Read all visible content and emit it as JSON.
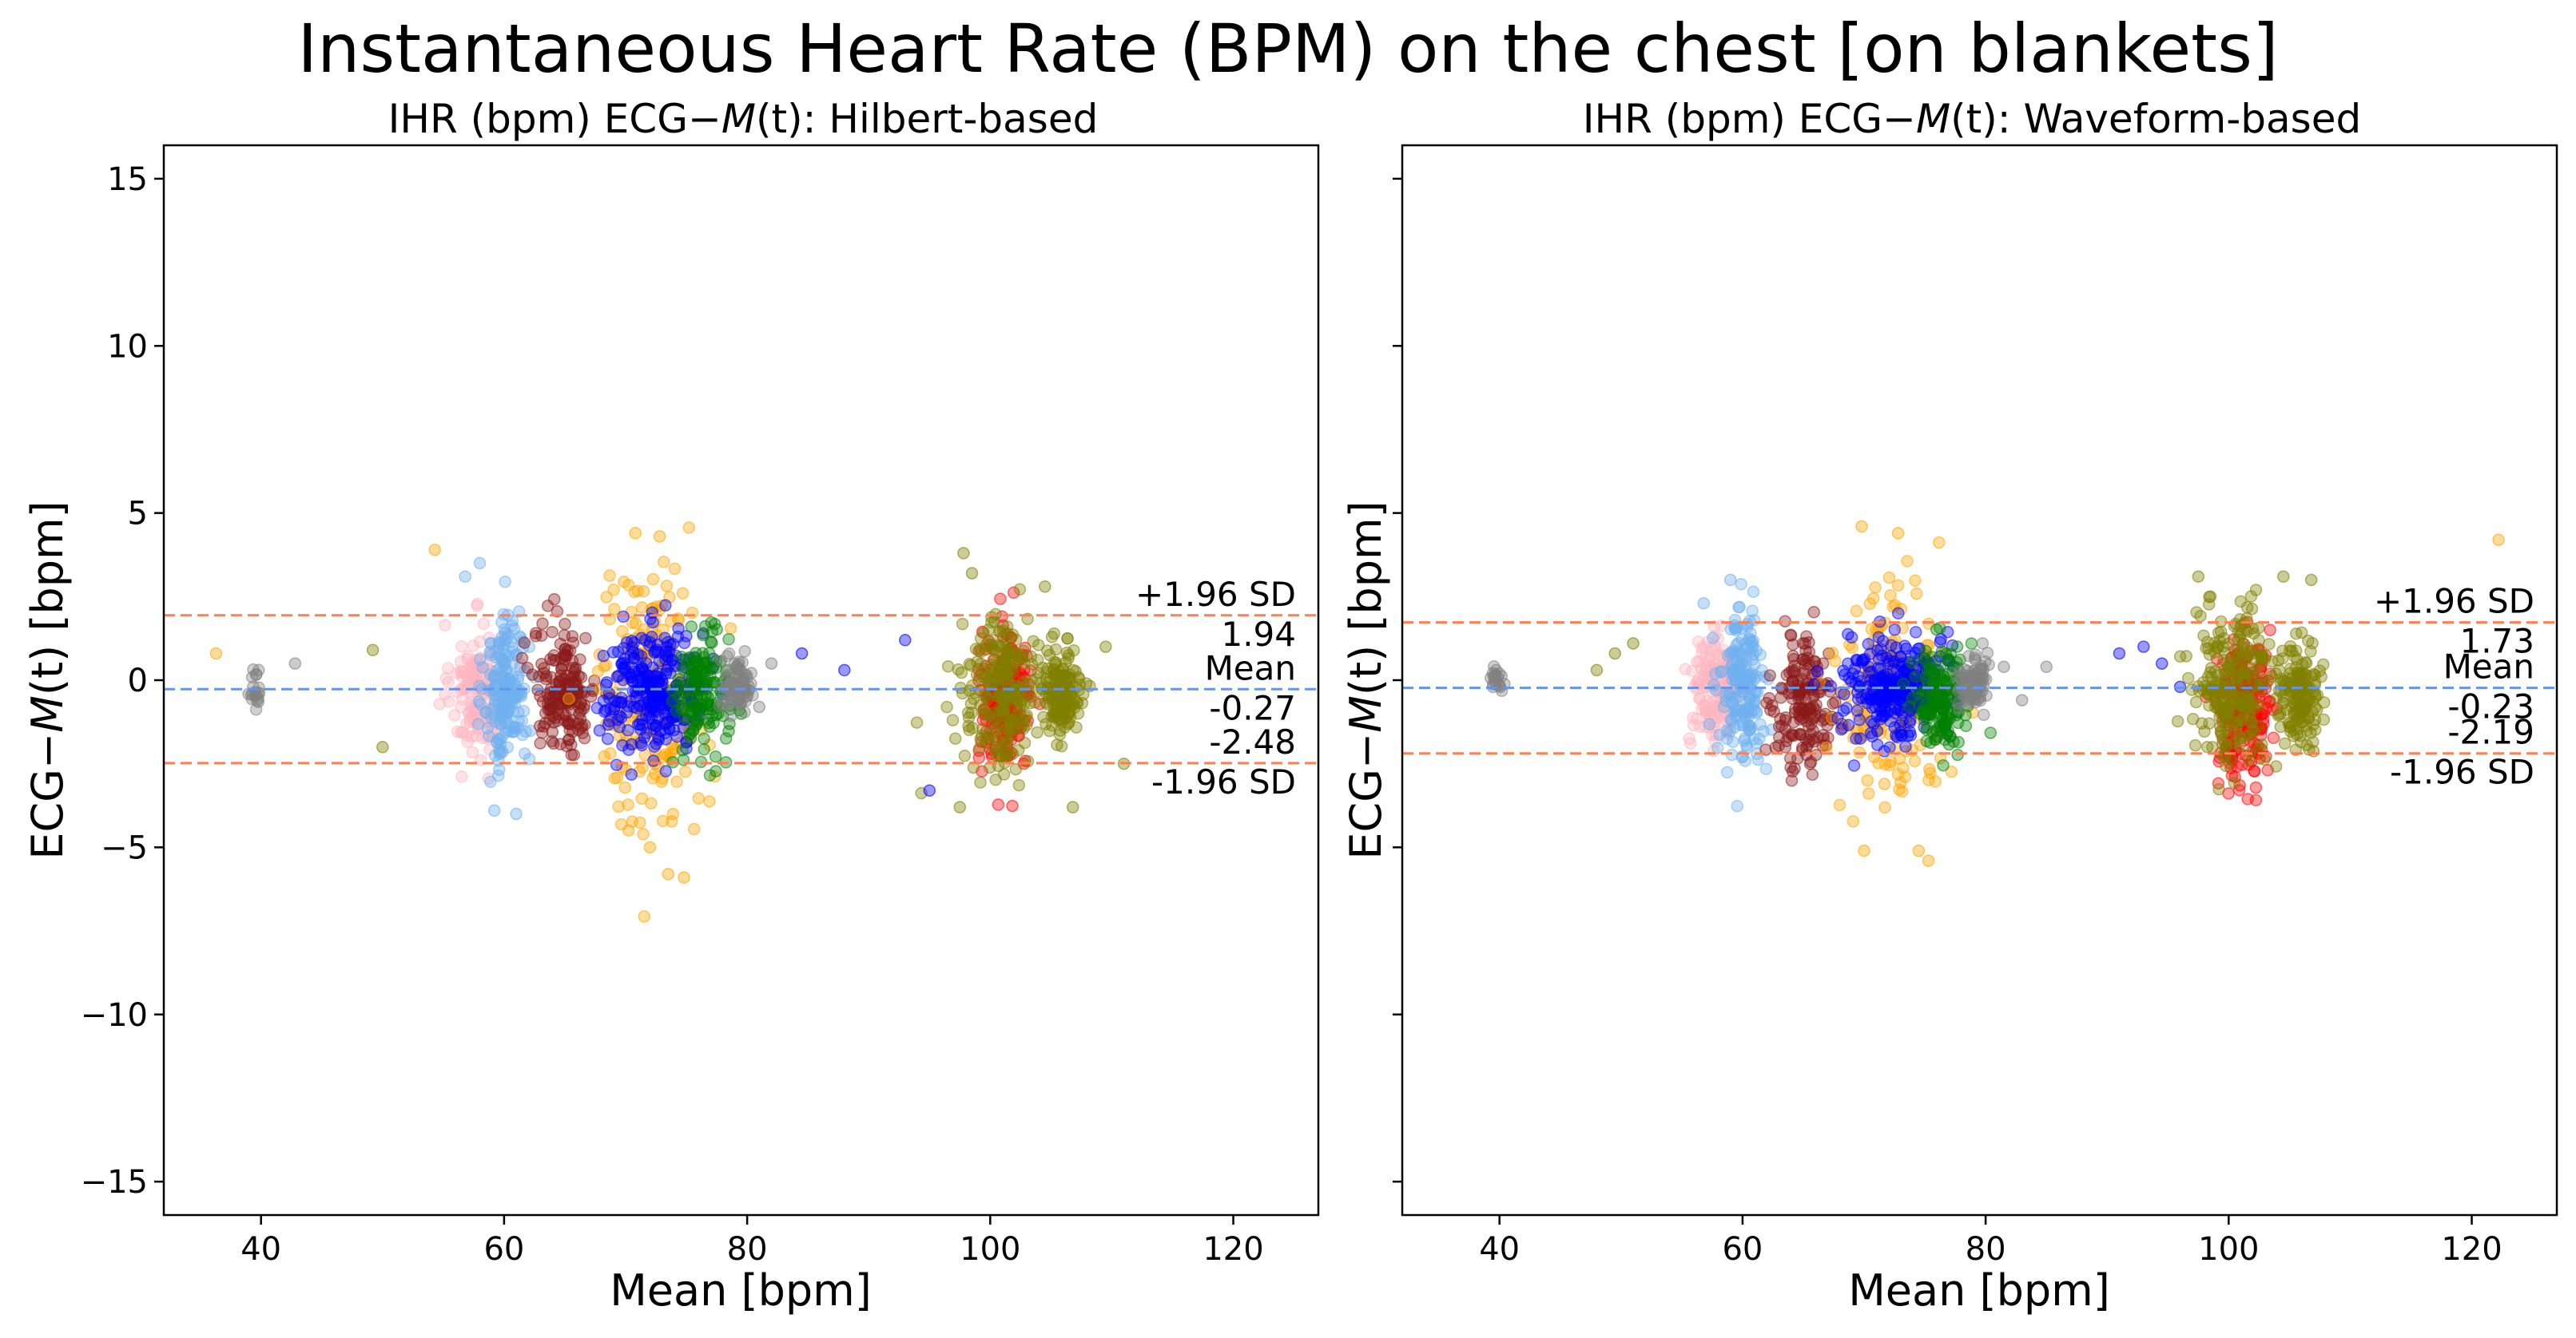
{
  "figure": {
    "title": "Instantaneous Heart Rate (BPM) on the chest [on blankets]"
  },
  "chart_data": [
    {
      "type": "scatter",
      "title_prefix": "IHR (bpm) ECG−",
      "title_italic": "M",
      "title_paren": "(t)",
      "title_suffix": ": Hilbert-based",
      "xlabel": "Mean [bpm]",
      "ylabel_prefix": "ECG−",
      "ylabel_italic": "M",
      "ylabel_suffix": "(t) [bpm]",
      "xlim": [
        32,
        127
      ],
      "ylim": [
        -16,
        16
      ],
      "xticks": [
        40,
        60,
        80,
        100,
        120
      ],
      "yticks": [
        15,
        10,
        5,
        0,
        -5,
        -10,
        -15
      ],
      "ytick_labels": [
        "15",
        "10",
        "5",
        "0",
        "−5",
        "−10",
        "−15"
      ],
      "grid": false,
      "mean": -0.27,
      "upper_loa": 1.94,
      "lower_loa": -2.48,
      "annotations": {
        "upper_label": "+1.96 SD",
        "upper_value": "1.94",
        "mean_label": "Mean",
        "mean_value": "-0.27",
        "lower_value": "-2.48",
        "lower_label": "-1.96 SD"
      },
      "series": [
        {
          "color": "#808080",
          "x_center": 39.5,
          "x_spread": 0.3,
          "y_center": -0.2,
          "y_spread": 0.35,
          "n": 20
        },
        {
          "color": "#ffb6c1",
          "x_center": 57.8,
          "x_spread": 1.1,
          "y_center": -0.3,
          "y_spread": 1.0,
          "n": 150
        },
        {
          "color": "#6fb0f0",
          "x_center": 60.2,
          "x_spread": 0.9,
          "y_center": -0.3,
          "y_spread": 1.2,
          "n": 180
        },
        {
          "color": "#8b1a1a",
          "x_center": 65.0,
          "x_spread": 1.3,
          "y_center": -0.3,
          "y_spread": 0.9,
          "n": 170
        },
        {
          "color": "#ffa500",
          "x_center": 72.0,
          "x_spread": 2.3,
          "y_center": -0.5,
          "y_spread": 2.0,
          "n": 180
        },
        {
          "color": "#0000ff",
          "x_center": 72.5,
          "x_spread": 2.1,
          "y_center": -0.3,
          "y_spread": 0.9,
          "n": 280
        },
        {
          "color": "#008000",
          "x_center": 76.3,
          "x_spread": 1.1,
          "y_center": -0.4,
          "y_spread": 0.9,
          "n": 150
        },
        {
          "color": "#808080",
          "x_center": 79.2,
          "x_spread": 0.6,
          "y_center": -0.1,
          "y_spread": 0.4,
          "n": 80
        },
        {
          "color": "#ff0000",
          "x_center": 101.2,
          "x_spread": 1.1,
          "y_center": -0.7,
          "y_spread": 1.0,
          "n": 200
        },
        {
          "color": "#808000",
          "x_center": 101.0,
          "x_spread": 1.7,
          "y_center": -0.3,
          "y_spread": 1.1,
          "n": 230
        },
        {
          "color": "#808000",
          "x_center": 105.8,
          "x_spread": 0.9,
          "y_center": -0.4,
          "y_spread": 0.7,
          "n": 160
        }
      ],
      "outliers": [
        {
          "x": 36.3,
          "y": 0.8,
          "color": "#ffa500"
        },
        {
          "x": 42.8,
          "y": 0.5,
          "color": "#808080"
        },
        {
          "x": 49.2,
          "y": 0.9,
          "color": "#808000"
        },
        {
          "x": 50.0,
          "y": -2.0,
          "color": "#808000"
        },
        {
          "x": 54.3,
          "y": 3.9,
          "color": "#ffa500"
        },
        {
          "x": 56.8,
          "y": 3.1,
          "color": "#6fb0f0"
        },
        {
          "x": 58.0,
          "y": 3.5,
          "color": "#6fb0f0"
        },
        {
          "x": 59.2,
          "y": -3.9,
          "color": "#6fb0f0"
        },
        {
          "x": 61.0,
          "y": -4.0,
          "color": "#6fb0f0"
        },
        {
          "x": 70.8,
          "y": 4.4,
          "color": "#ffa500"
        },
        {
          "x": 72.8,
          "y": 4.3,
          "color": "#ffa500"
        },
        {
          "x": 73.5,
          "y": -5.8,
          "color": "#ffa500"
        },
        {
          "x": 74.8,
          "y": -5.9,
          "color": "#ffa500"
        },
        {
          "x": 72.0,
          "y": -5.0,
          "color": "#ffa500"
        },
        {
          "x": 81.0,
          "y": -0.8,
          "color": "#808080"
        },
        {
          "x": 82.0,
          "y": 0.5,
          "color": "#808080"
        },
        {
          "x": 84.5,
          "y": 0.8,
          "color": "#0000ff"
        },
        {
          "x": 88.0,
          "y": 0.3,
          "color": "#0000ff"
        },
        {
          "x": 93.0,
          "y": 1.2,
          "color": "#0000ff"
        },
        {
          "x": 95.0,
          "y": -3.3,
          "color": "#0000ff"
        },
        {
          "x": 97.8,
          "y": 3.8,
          "color": "#808000"
        },
        {
          "x": 98.5,
          "y": 3.2,
          "color": "#808000"
        },
        {
          "x": 104.5,
          "y": 2.8,
          "color": "#808000"
        },
        {
          "x": 106.8,
          "y": -3.8,
          "color": "#808000"
        },
        {
          "x": 109.5,
          "y": 1.0,
          "color": "#808000"
        },
        {
          "x": 111.0,
          "y": -2.5,
          "color": "#808000"
        },
        {
          "x": 97.5,
          "y": -3.8,
          "color": "#808000"
        }
      ]
    },
    {
      "type": "scatter",
      "title_prefix": "IHR (bpm) ECG−",
      "title_italic": "M",
      "title_paren": "(t)",
      "title_suffix": ": Waveform-based",
      "xlabel": "Mean [bpm]",
      "ylabel_prefix": "ECG−",
      "ylabel_italic": "M",
      "ylabel_suffix": "(t) [bpm]",
      "xlim": [
        32,
        127
      ],
      "ylim": [
        -16,
        16
      ],
      "xticks": [
        40,
        60,
        80,
        100,
        120
      ],
      "yticks": [
        15,
        10,
        5,
        0,
        -5,
        -10,
        -15
      ],
      "grid": false,
      "mean": -0.23,
      "upper_loa": 1.73,
      "lower_loa": -2.19,
      "annotations": {
        "upper_label": "+1.96 SD",
        "upper_value": "1.73",
        "mean_label": "Mean",
        "mean_value": "-0.23",
        "lower_value": "-2.19",
        "lower_label": "-1.96 SD"
      },
      "series": [
        {
          "color": "#808080",
          "x_center": 39.7,
          "x_spread": 0.3,
          "y_center": 0.0,
          "y_spread": 0.2,
          "n": 20
        },
        {
          "color": "#ffb6c1",
          "x_center": 57.8,
          "x_spread": 1.1,
          "y_center": -0.3,
          "y_spread": 0.9,
          "n": 150
        },
        {
          "color": "#6fb0f0",
          "x_center": 60.0,
          "x_spread": 0.9,
          "y_center": -0.2,
          "y_spread": 1.1,
          "n": 180
        },
        {
          "color": "#8b1a1a",
          "x_center": 65.2,
          "x_spread": 1.3,
          "y_center": -0.8,
          "y_spread": 1.0,
          "n": 170
        },
        {
          "color": "#ffa500",
          "x_center": 72.0,
          "x_spread": 2.2,
          "y_center": -0.3,
          "y_spread": 1.6,
          "n": 160
        },
        {
          "color": "#0000ff",
          "x_center": 72.5,
          "x_spread": 2.0,
          "y_center": -0.2,
          "y_spread": 0.8,
          "n": 280
        },
        {
          "color": "#008000",
          "x_center": 76.3,
          "x_spread": 1.1,
          "y_center": -0.5,
          "y_spread": 0.8,
          "n": 150
        },
        {
          "color": "#808080",
          "x_center": 79.0,
          "x_spread": 0.6,
          "y_center": -0.1,
          "y_spread": 0.4,
          "n": 80
        },
        {
          "color": "#ff0000",
          "x_center": 101.2,
          "x_spread": 1.1,
          "y_center": -0.9,
          "y_spread": 1.1,
          "n": 200
        },
        {
          "color": "#808000",
          "x_center": 100.5,
          "x_spread": 1.6,
          "y_center": -0.2,
          "y_spread": 1.1,
          "n": 230
        },
        {
          "color": "#808000",
          "x_center": 105.8,
          "x_spread": 0.9,
          "y_center": -0.4,
          "y_spread": 0.7,
          "n": 160
        }
      ],
      "outliers": [
        {
          "x": 48.0,
          "y": 0.3,
          "color": "#808000"
        },
        {
          "x": 49.5,
          "y": 0.8,
          "color": "#808000"
        },
        {
          "x": 51.0,
          "y": 1.1,
          "color": "#808000"
        },
        {
          "x": 56.8,
          "y": 2.3,
          "color": "#6fb0f0"
        },
        {
          "x": 59.0,
          "y": 3.0,
          "color": "#6fb0f0"
        },
        {
          "x": 69.8,
          "y": 4.6,
          "color": "#ffa500"
        },
        {
          "x": 72.8,
          "y": 4.4,
          "color": "#ffa500"
        },
        {
          "x": 74.5,
          "y": -5.1,
          "color": "#ffa500"
        },
        {
          "x": 75.3,
          "y": -5.4,
          "color": "#ffa500"
        },
        {
          "x": 70.0,
          "y": -5.1,
          "color": "#ffa500"
        },
        {
          "x": 81.5,
          "y": 0.4,
          "color": "#808080"
        },
        {
          "x": 83.0,
          "y": -0.6,
          "color": "#808080"
        },
        {
          "x": 85.0,
          "y": 0.4,
          "color": "#808080"
        },
        {
          "x": 91.0,
          "y": 0.8,
          "color": "#0000ff"
        },
        {
          "x": 93.0,
          "y": 1.0,
          "color": "#0000ff"
        },
        {
          "x": 94.5,
          "y": 0.5,
          "color": "#0000ff"
        },
        {
          "x": 96.0,
          "y": -0.2,
          "color": "#0000ff"
        },
        {
          "x": 97.5,
          "y": 3.1,
          "color": "#808000"
        },
        {
          "x": 98.5,
          "y": 2.5,
          "color": "#808000"
        },
        {
          "x": 104.5,
          "y": 3.1,
          "color": "#808000"
        },
        {
          "x": 106.8,
          "y": 3.0,
          "color": "#808000"
        },
        {
          "x": 122.2,
          "y": 4.2,
          "color": "#ffa500"
        }
      ]
    }
  ]
}
